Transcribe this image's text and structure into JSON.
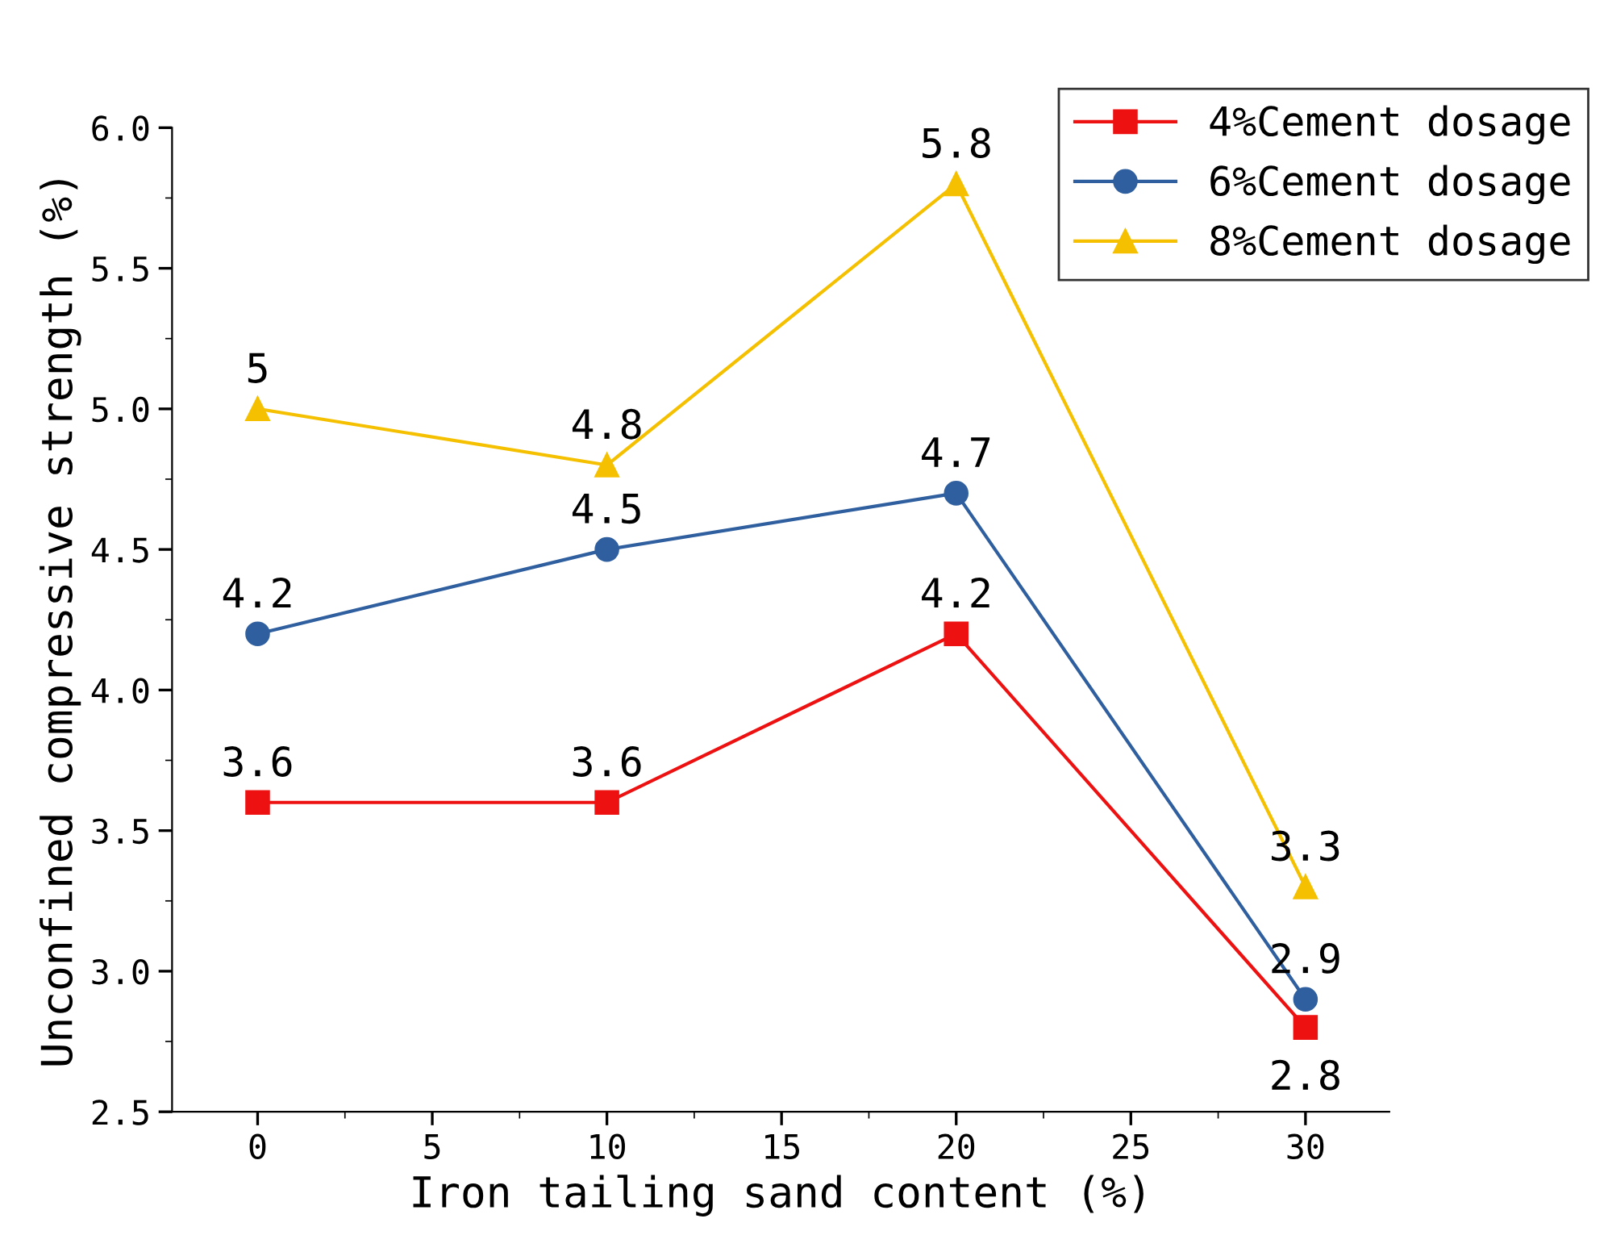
{
  "chart_data": {
    "type": "line",
    "xlabel": "Iron tailing sand content (%)",
    "ylabel": "Unconfined compressive strength (%)",
    "x": [
      0,
      10,
      20,
      30
    ],
    "series": [
      {
        "name": "4%Cement dosage",
        "color": "#ee1111",
        "values": [
          3.6,
          3.6,
          4.2,
          2.8
        ],
        "marker": "square"
      },
      {
        "name": "6%Cement dosage",
        "color": "#2f5f9f",
        "values": [
          4.2,
          4.5,
          4.7,
          2.9
        ],
        "marker": "circle"
      },
      {
        "name": "8%Cement dosage",
        "color": "#f5c000",
        "values": [
          5,
          4.8,
          5.8,
          3.3
        ],
        "marker": "triangle"
      }
    ],
    "xlim": [
      -2.45,
      32.4
    ],
    "xticks": [
      0,
      5,
      10,
      15,
      20,
      25,
      30
    ],
    "ylim": [
      2.5,
      6.0
    ],
    "yticks": [
      {
        "value": 2.5,
        "label": "2.5"
      },
      {
        "value": 3.0,
        "label": "3.0"
      },
      {
        "value": 3.5,
        "label": "3.5"
      },
      {
        "value": 4.0,
        "label": "4.0"
      },
      {
        "value": 4.5,
        "label": "4.5"
      },
      {
        "value": 5.0,
        "label": "5.0"
      },
      {
        "value": 5.5,
        "label": "5.5"
      },
      {
        "value": 6.0,
        "label": "6.0"
      }
    ],
    "data_labels": true,
    "legend": "top right",
    "grid": false,
    "line_style": "solid"
  }
}
